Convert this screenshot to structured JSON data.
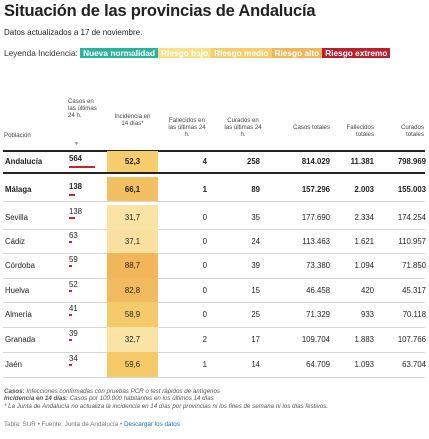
{
  "title": "Situación de las provincias de Andalucía",
  "subtitle": "Datos actualizados a 17 de noviembre.",
  "legend": {
    "label": "Leyenda Incidencia:",
    "items": [
      {
        "label": "Nueva normalidad",
        "color": "#2bb39a"
      },
      {
        "label": "Riesgo bajo",
        "color": "#f7df8c"
      },
      {
        "label": "Riesgo medio",
        "color": "#f5cd6c"
      },
      {
        "label": "Riesgo alto",
        "color": "#f2b65a"
      },
      {
        "label": "Riesgo extremo",
        "color": "#b8202f"
      }
    ]
  },
  "chart_data": {
    "type": "table",
    "columns": [
      "Población",
      "Casos en las últimas 24 h.",
      "Incidencia en 14 días*",
      "Fallecidos en las últimas 24 h.",
      "Curados en las últimas 24 h.",
      "Casos totales",
      "Fallecidos totales",
      "Curados totales"
    ],
    "rows": [
      {
        "name": "Andalucía",
        "casos24": 564,
        "incidencia": "52,3",
        "fall24": 4,
        "cur24": 258,
        "casos_tot": "814.029",
        "fall_tot": "11.381",
        "cur_tot": "798.969",
        "bold": true,
        "color": "#f5cd6c"
      },
      {
        "name": "Málaga",
        "casos24": 138,
        "incidencia": "66,1",
        "fall24": 1,
        "cur24": 89,
        "casos_tot": "157.296",
        "fall_tot": "2.003",
        "cur_tot": "155.003",
        "bold": true,
        "color": "#f2c062"
      },
      {
        "name": "Sevilla",
        "casos24": 138,
        "incidencia": "31,7",
        "fall24": 0,
        "cur24": 35,
        "casos_tot": "177.690",
        "fall_tot": "2.334",
        "cur_tot": "174.254",
        "bold": false,
        "color": "#f9e4a5"
      },
      {
        "name": "Cádiz",
        "casos24": 63,
        "incidencia": "37,1",
        "fall24": 0,
        "cur24": 24,
        "casos_tot": "113.463",
        "fall_tot": "1.621",
        "cur_tot": "110.957",
        "bold": false,
        "color": "#f9e0a0"
      },
      {
        "name": "Córdoba",
        "casos24": 59,
        "incidencia": "88,7",
        "fall24": 0,
        "cur24": 39,
        "casos_tot": "73.380",
        "fall_tot": "1.094",
        "cur_tot": "71.850",
        "bold": false,
        "color": "#f1b659"
      },
      {
        "name": "Huelva",
        "casos24": 52,
        "incidencia": "82,8",
        "fall24": 0,
        "cur24": 15,
        "casos_tot": "46.458",
        "fall_tot": "420",
        "cur_tot": "45.317",
        "bold": false,
        "color": "#f2ba5e"
      },
      {
        "name": "Almería",
        "casos24": 41,
        "incidencia": "58,9",
        "fall24": 0,
        "cur24": 25,
        "casos_tot": "71.329",
        "fall_tot": "933",
        "cur_tot": "70.118",
        "bold": false,
        "color": "#f5ca6a"
      },
      {
        "name": "Granada",
        "casos24": 39,
        "incidencia": "32,7",
        "fall24": 2,
        "cur24": 17,
        "casos_tot": "109.704",
        "fall_tot": "1.883",
        "cur_tot": "107.766",
        "bold": false,
        "color": "#f9e4a5"
      },
      {
        "name": "Jaén",
        "casos24": 34,
        "incidencia": "59,6",
        "fall24": 1,
        "cur24": 14,
        "casos_tot": "64.709",
        "fall_tot": "1.093",
        "cur_tot": "63.704",
        "bold": false,
        "color": "#f5c968"
      }
    ]
  },
  "notes": {
    "n1_label": "Casos:",
    "n1_text": " Infecciones confirmadas con pruebas PCR o test rápidos de antígenos",
    "n2_label": "Incidencia en 14 días:",
    "n2_text": " Casos por 100.000 habitantes en los últimos 14 días",
    "n3_text": "* La Junta de Andalucía no actualiza la incidencia en 14 días por provincias ni los fines de semana ni los días festivos."
  },
  "source": {
    "text": "Tabla: SUR • Fuente: Junta de Andalucía • ",
    "link": "Descargar los datos"
  }
}
